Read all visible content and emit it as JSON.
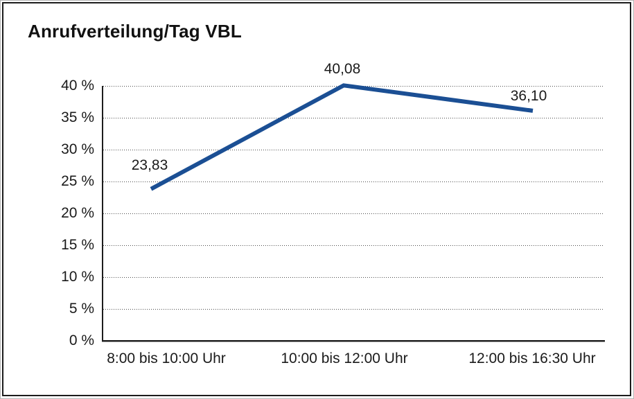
{
  "chart": {
    "colors": {
      "line": "#1b4f94",
      "text": "#1a1a1a",
      "grid_dots": "#4a4a4a",
      "axis": "#1c1c1c",
      "background": "#ffffff"
    }
  },
  "chart_data": {
    "type": "line",
    "title": "Anrufverteilung/Tag VBL",
    "categories": [
      "8:00 bis 10:00 Uhr",
      "10:00 bis 12:00 Uhr",
      "12:00 bis 16:30 Uhr"
    ],
    "series": [
      {
        "name": "Anrufverteilung/Tag VBL",
        "values": [
          23.83,
          40.08,
          36.1
        ],
        "data_labels": [
          "23,83",
          "40,08",
          "36,10"
        ],
        "color": "#1b4f94"
      }
    ],
    "xlabel": "",
    "ylabel": "",
    "ylim": [
      0,
      40
    ],
    "y_tick_step": 5,
    "y_tick_labels": [
      "0 %",
      "5 %",
      "10 %",
      "15 %",
      "20 %",
      "25 %",
      "30 %",
      "35 %",
      "40 %"
    ],
    "grid": "horizontal dotted",
    "legend": "none",
    "markers": "none"
  }
}
